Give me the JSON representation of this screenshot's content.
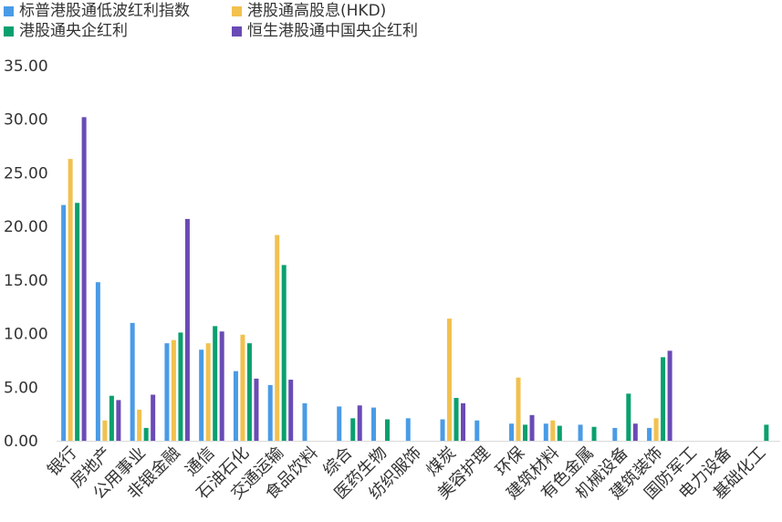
{
  "chart_data": {
    "type": "bar",
    "title": "",
    "xlabel": "",
    "ylabel": "",
    "ylim": [
      0,
      35
    ],
    "y_ticks": [
      "0.00",
      "5.00",
      "10.00",
      "15.00",
      "20.00",
      "25.00",
      "30.00",
      "35.00"
    ],
    "grid": false,
    "legend_position": "top-left",
    "categories": [
      "银行",
      "房地产",
      "公用事业",
      "非银金融",
      "通信",
      "石油石化",
      "交通运输",
      "食品饮料",
      "综合",
      "医药生物",
      "纺织服饰",
      "煤炭",
      "美容护理",
      "环保",
      "建筑材料",
      "有色金属",
      "机械设备",
      "建筑装饰",
      "国防军工",
      "电力设备",
      "基础化工"
    ],
    "series": [
      {
        "name": "标普港股通低波红利指数",
        "color": "#4a9be6",
        "values": [
          22.0,
          14.8,
          11.0,
          9.1,
          8.5,
          6.5,
          5.2,
          3.5,
          3.2,
          3.1,
          2.1,
          2.0,
          1.9,
          1.6,
          1.6,
          1.5,
          1.2,
          1.2,
          null,
          null,
          null
        ]
      },
      {
        "name": "港股通高股息(HKD)",
        "color": "#f2c14e",
        "values": [
          26.3,
          1.9,
          2.9,
          9.4,
          9.1,
          9.9,
          19.2,
          null,
          null,
          null,
          null,
          11.4,
          null,
          5.9,
          1.9,
          null,
          null,
          2.1,
          null,
          null,
          null
        ]
      },
      {
        "name": "港股通央企红利",
        "color": "#0aa06e",
        "values": [
          22.2,
          4.2,
          1.2,
          10.1,
          10.7,
          9.1,
          16.4,
          null,
          2.1,
          2.0,
          null,
          4.0,
          null,
          1.5,
          1.4,
          1.3,
          4.4,
          7.8,
          null,
          null,
          1.5
        ]
      },
      {
        "name": "恒生港股通中国央企红利",
        "color": "#6a4bb5",
        "values": [
          30.2,
          3.8,
          4.3,
          20.7,
          10.2,
          5.8,
          5.7,
          null,
          3.3,
          null,
          null,
          3.5,
          null,
          2.4,
          null,
          null,
          1.6,
          8.4,
          null,
          null,
          null
        ]
      }
    ]
  }
}
